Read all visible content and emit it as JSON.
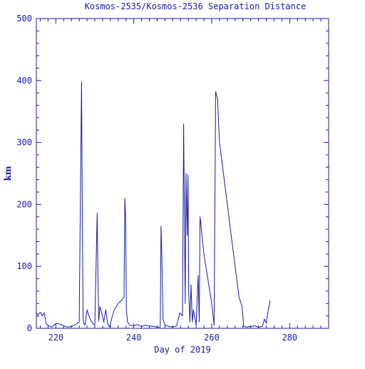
{
  "chart_data": {
    "type": "line",
    "title": "Kosmos-2535/Kosmos-2536 Separation Distance",
    "xlabel": "Day of 2019",
    "ylabel": "km",
    "xlim": [
      215,
      290
    ],
    "ylim": [
      0,
      500
    ],
    "x_ticks": [
      220,
      240,
      260,
      280
    ],
    "y_ticks": [
      0,
      100,
      200,
      300,
      400,
      500
    ],
    "grid": false,
    "color": "#1a1aa6",
    "series": [
      {
        "x": [
          215,
          215.5,
          216,
          216.5,
          217,
          217.5,
          218,
          218.5,
          219,
          220,
          221,
          222,
          223,
          224,
          225,
          226,
          226.6,
          226.8,
          227.0,
          227.2,
          227.5,
          228,
          228.5,
          229,
          229.5,
          230,
          230.6,
          230.8,
          231.0,
          231.3,
          231.8,
          232.3,
          232.8,
          233.3,
          233.8,
          234.5,
          235,
          235.5,
          236,
          236.8,
          237.5,
          237.7,
          237.9,
          238.1,
          238.4,
          239,
          240,
          241,
          242,
          243,
          244,
          245,
          246,
          246.8,
          247.0,
          247.2,
          247.5,
          248,
          249,
          250,
          251,
          251.8,
          252.5,
          252.8,
          253.0,
          253.2,
          253.4,
          253.7,
          253.9,
          254.1,
          254.4,
          254.7,
          255.0,
          255.3,
          256,
          256.5,
          256.8,
          257.0,
          257.2,
          257.5,
          258,
          259,
          260,
          260.6,
          261.0,
          261.5,
          261.7,
          262,
          263,
          264,
          265,
          266,
          267,
          267.8,
          268.2,
          269,
          270,
          271,
          272,
          273,
          273.5,
          274,
          274.5,
          275
        ],
        "y": [
          25,
          22,
          26,
          20,
          25,
          8,
          5,
          3,
          2,
          8,
          7,
          4,
          2,
          3,
          6,
          10,
          398,
          180,
          15,
          8,
          5,
          30,
          20,
          12,
          8,
          5,
          186,
          80,
          12,
          35,
          25,
          10,
          30,
          8,
          2,
          20,
          30,
          35,
          40,
          45,
          50,
          210,
          180,
          30,
          10,
          5,
          4,
          6,
          3,
          5,
          4,
          3,
          2,
          2,
          165,
          120,
          15,
          5,
          3,
          2,
          4,
          25,
          20,
          330,
          180,
          40,
          250,
          150,
          248,
          60,
          10,
          70,
          10,
          30,
          5,
          85,
          10,
          180,
          170,
          150,
          120,
          80,
          40,
          5,
          382,
          370,
          340,
          300,
          250,
          200,
          150,
          100,
          50,
          35,
          3,
          2,
          3,
          4,
          2,
          3,
          15,
          8,
          30,
          45
        ]
      }
    ]
  }
}
